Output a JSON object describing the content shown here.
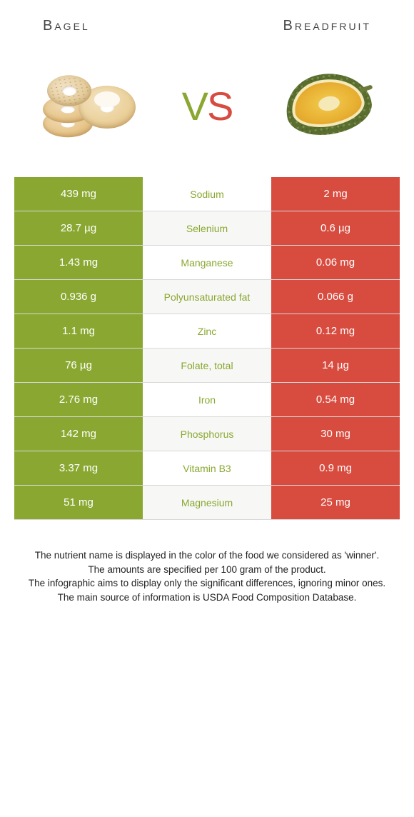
{
  "header": {
    "left_title": "Bagel",
    "right_title": "Breadfruit"
  },
  "vs": {
    "v": "V",
    "s": "S"
  },
  "colors": {
    "left": "#8aa831",
    "right": "#d84b3f",
    "row_alt_bg": "#f7f7f5",
    "row_bg": "#ffffff"
  },
  "table": {
    "rows": [
      {
        "name": "Sodium",
        "left": "439 mg",
        "right": "2 mg",
        "winner": "left"
      },
      {
        "name": "Selenium",
        "left": "28.7 µg",
        "right": "0.6 µg",
        "winner": "left"
      },
      {
        "name": "Manganese",
        "left": "1.43 mg",
        "right": "0.06 mg",
        "winner": "left"
      },
      {
        "name": "Polyunsaturated fat",
        "left": "0.936 g",
        "right": "0.066 g",
        "winner": "left"
      },
      {
        "name": "Zinc",
        "left": "1.1 mg",
        "right": "0.12 mg",
        "winner": "left"
      },
      {
        "name": "Folate, total",
        "left": "76 µg",
        "right": "14 µg",
        "winner": "left"
      },
      {
        "name": "Iron",
        "left": "2.76 mg",
        "right": "0.54 mg",
        "winner": "left"
      },
      {
        "name": "Phosphorus",
        "left": "142 mg",
        "right": "30 mg",
        "winner": "left"
      },
      {
        "name": "Vitamin B3",
        "left": "3.37 mg",
        "right": "0.9 mg",
        "winner": "left"
      },
      {
        "name": "Magnesium",
        "left": "51 mg",
        "right": "25 mg",
        "winner": "left"
      }
    ]
  },
  "footer": {
    "line1": "The nutrient name is displayed in the color of the food we considered as 'winner'.",
    "line2": "The amounts are specified per 100 gram of the product.",
    "line3": "The infographic aims to display only the significant differences, ignoring minor ones.",
    "line4": "The main source of information is USDA Food Composition Database."
  }
}
